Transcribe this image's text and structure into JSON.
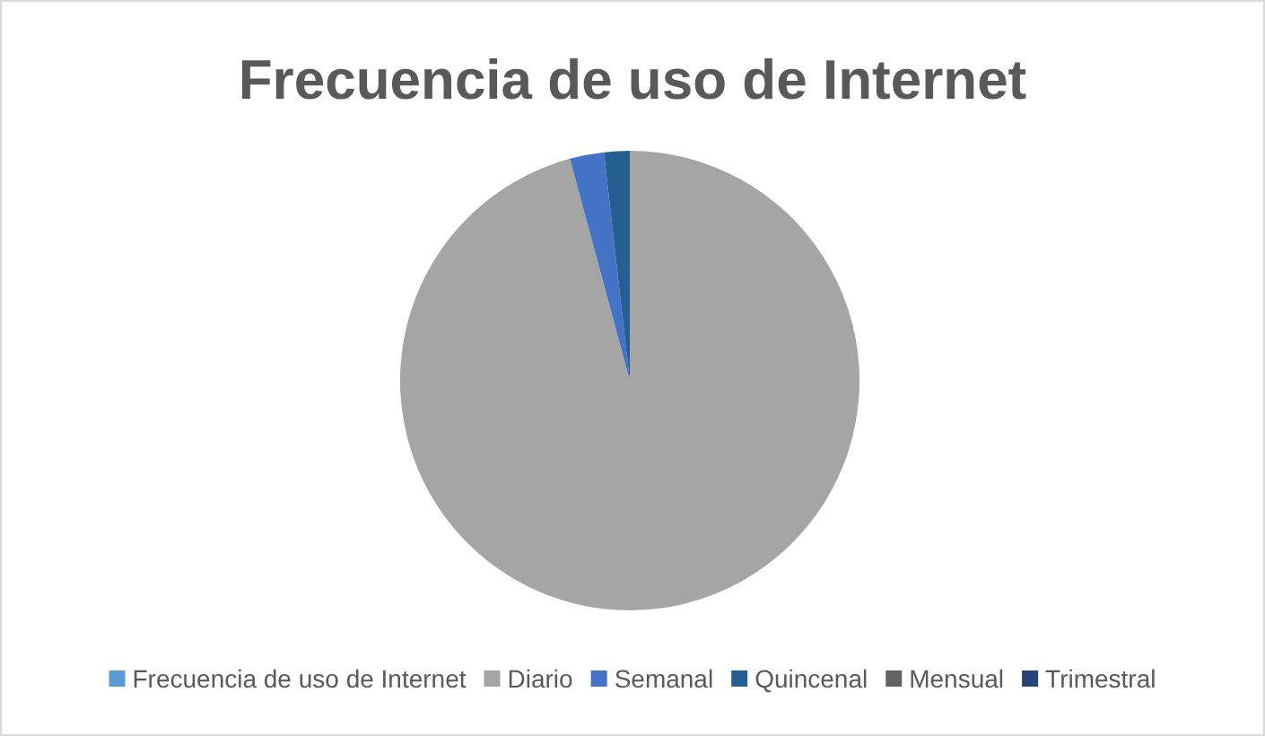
{
  "chart_data": {
    "type": "pie",
    "title": "Frecuencia de uso de Internet",
    "categories": [
      "Frecuencia de uso de Internet",
      "Diario",
      "Semanal",
      "Quincenal",
      "Mensual",
      "Trimestral"
    ],
    "values": [
      0,
      95.8,
      2.4,
      1.8,
      0,
      0
    ],
    "colors": [
      "#5b9bd5",
      "#a5a5a5",
      "#4472c4",
      "#255e91",
      "#636363",
      "#264478"
    ],
    "legend": "bottom"
  }
}
